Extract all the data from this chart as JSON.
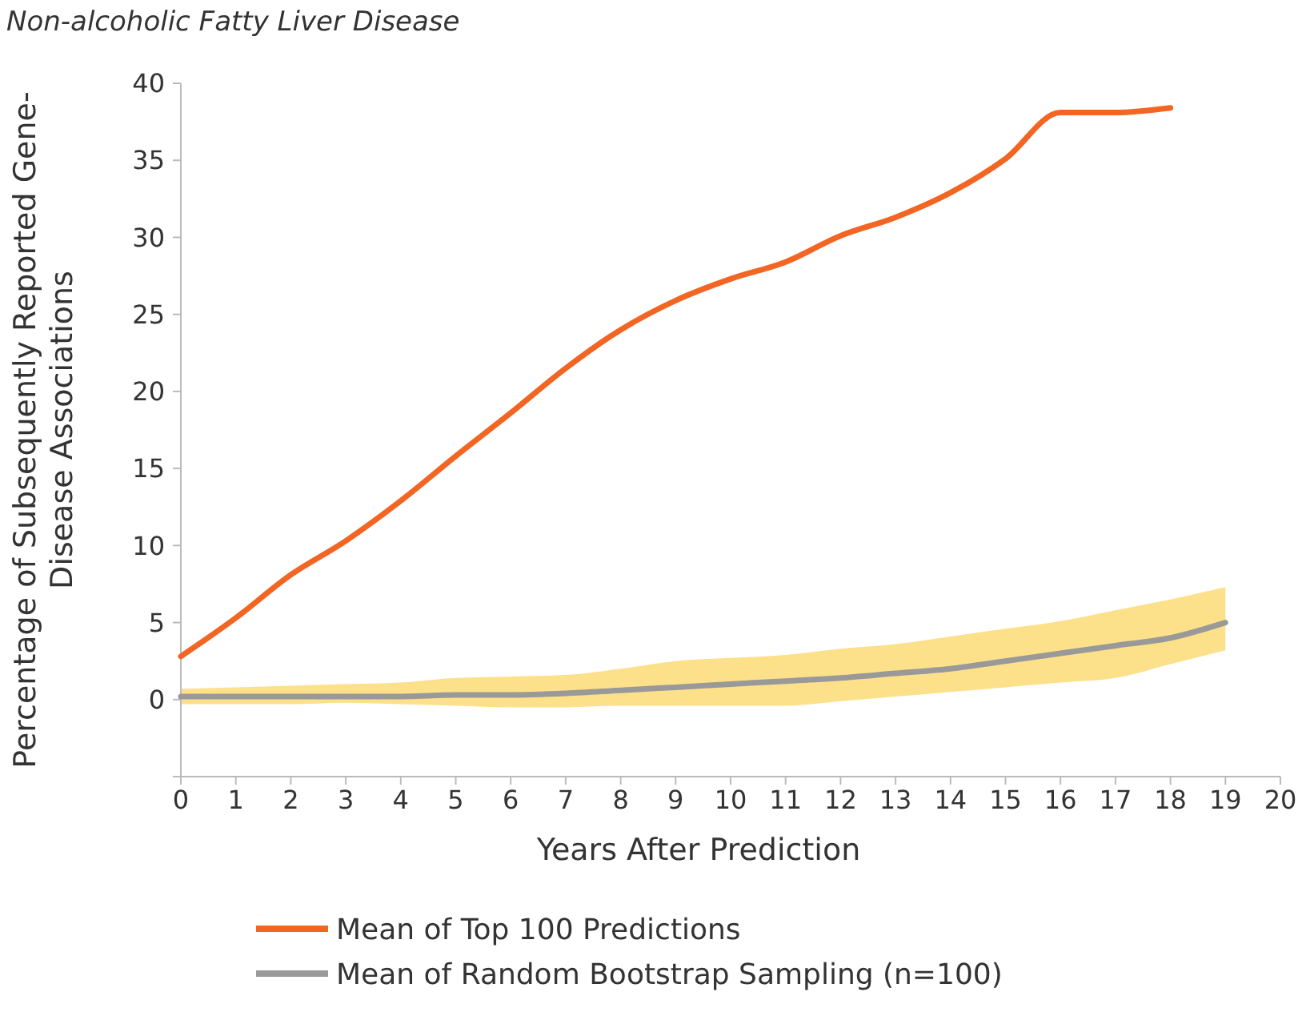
{
  "chart_data": {
    "type": "line",
    "title": "Non-alcoholic Fatty Liver Disease",
    "xlabel": "Years After Prediction",
    "ylabel": "Percentage of Subsequently Reported Gene-Disease Associations",
    "xlim": [
      0,
      20
    ],
    "xticks": [
      0,
      1,
      2,
      3,
      4,
      5,
      6,
      7,
      8,
      9,
      10,
      11,
      12,
      13,
      14,
      15,
      16,
      17,
      18,
      19,
      20
    ],
    "ylim": [
      -5,
      40
    ],
    "yticks": [
      {
        "value": -5,
        "label": null
      },
      0,
      5,
      10,
      15,
      20,
      25,
      30,
      35,
      40
    ],
    "grid": false,
    "legend": "bottom",
    "marker": "none",
    "line_style": "solid",
    "series": [
      {
        "name": "Mean of Top 100 Predictions",
        "color": "#f26522",
        "x": [
          0,
          1,
          2,
          3,
          4,
          5,
          6,
          7,
          8,
          9,
          10,
          11,
          12,
          13,
          14,
          15,
          16,
          17,
          18
        ],
        "values": [
          2.8,
          5.3,
          8.1,
          10.3,
          12.9,
          15.8,
          18.6,
          21.5,
          24,
          25.9,
          27.3,
          28.4,
          30.1,
          31.3,
          32.9,
          35.1,
          38.1,
          38.1,
          38.4
        ]
      },
      {
        "name": "Mean of Random Bootstrap Sampling (n=100)",
        "color": "#999999",
        "x": [
          0,
          1,
          2,
          3,
          4,
          5,
          6,
          7,
          8,
          9,
          10,
          11,
          12,
          13,
          14,
          15,
          16,
          17,
          18,
          19
        ],
        "values": [
          0.2,
          0.2,
          0.2,
          0.2,
          0.2,
          0.3,
          0.3,
          0.4,
          0.6,
          0.8,
          1.0,
          1.2,
          1.4,
          1.7,
          2.0,
          2.5,
          3.0,
          3.5,
          4.0,
          5.0
        ],
        "lower": [
          -0.3,
          -0.3,
          -0.3,
          -0.2,
          -0.3,
          -0.4,
          -0.5,
          -0.5,
          -0.4,
          -0.4,
          -0.4,
          -0.4,
          -0.1,
          0.2,
          0.5,
          0.8,
          1.1,
          1.4,
          2.3,
          3.2
        ],
        "upper": [
          0.7,
          0.8,
          0.9,
          1.0,
          1.1,
          1.4,
          1.5,
          1.6,
          2.0,
          2.5,
          2.7,
          2.9,
          3.3,
          3.6,
          4.1,
          4.6,
          5.1,
          5.8,
          6.5,
          7.3
        ]
      }
    ]
  }
}
